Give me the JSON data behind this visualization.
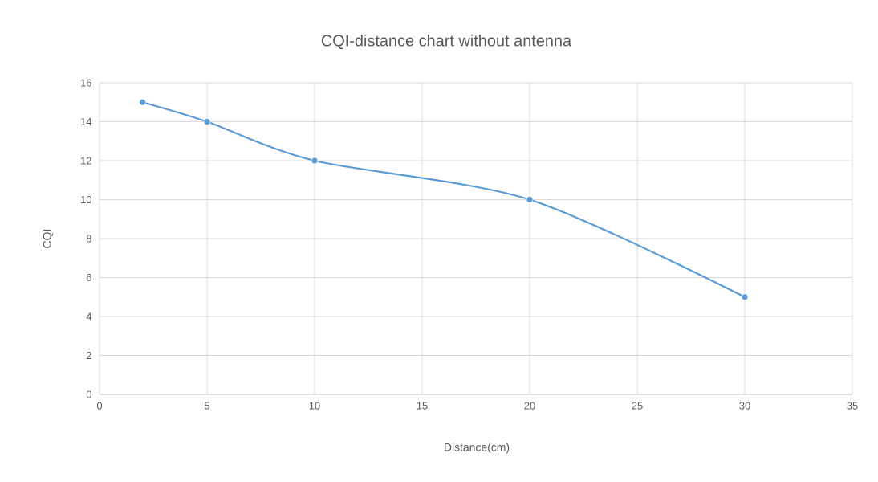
{
  "chart_data": {
    "type": "line",
    "title": "CQI-distance chart without antenna",
    "xlabel": "Distance(cm)",
    "ylabel": "CQI",
    "x": [
      2,
      5,
      10,
      20,
      30
    ],
    "values": [
      15,
      14,
      12,
      10,
      5
    ],
    "color": "#5b9bd5",
    "marker": "circle",
    "line_style": "solid",
    "grid": true,
    "xlim": [
      0,
      35
    ],
    "xticks": [
      0,
      5,
      10,
      15,
      20,
      25,
      30,
      35
    ],
    "ylim": [
      0,
      16
    ],
    "yticks": [
      0,
      2,
      4,
      6,
      8,
      10,
      12,
      14,
      16
    ]
  }
}
